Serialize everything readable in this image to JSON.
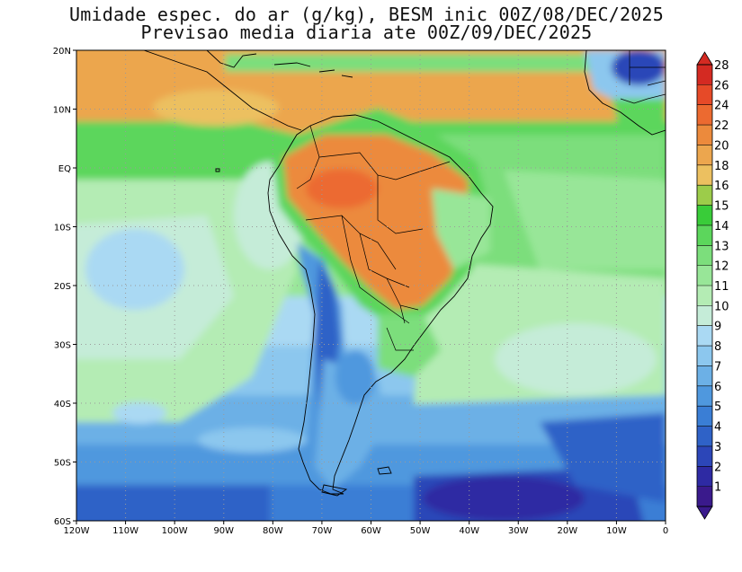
{
  "title": {
    "line1": "Umidade espec. do ar (g/kg), BESM inic 00Z/08/DEC/2025",
    "line2": "Previsao media diaria ate 00Z/09/DEC/2025"
  },
  "map": {
    "lon_labels": [
      "120W",
      "110W",
      "100W",
      "90W",
      "80W",
      "70W",
      "60W",
      "50W",
      "40W",
      "30W",
      "20W",
      "10W",
      "0"
    ],
    "lat_labels": [
      "20N",
      "10N",
      "EQ",
      "10S",
      "20S",
      "30S",
      "40S",
      "50S",
      "60S"
    ],
    "extent": {
      "lon": [
        -120,
        0
      ],
      "lat": [
        -60,
        20
      ]
    },
    "grid": "dotted"
  },
  "colorbar": {
    "labels": [
      "1",
      "2",
      "3",
      "4",
      "5",
      "6",
      "7",
      "8",
      "9",
      "10",
      "11",
      "12",
      "13",
      "14",
      "15",
      "16",
      "18",
      "20",
      "22",
      "24",
      "26",
      "28"
    ],
    "colors": [
      "#3a1a8c",
      "#2e2aa3",
      "#2c46b8",
      "#2f62c7",
      "#3a7ed5",
      "#4f98de",
      "#6cb0e6",
      "#8cc7ee",
      "#aad9f3",
      "#c5ecd8",
      "#b4ecb4",
      "#98e698",
      "#7cde7c",
      "#5cd65c",
      "#39cc39",
      "#9ccc4a",
      "#ecc060",
      "#eca64e",
      "#ec8a3c",
      "#ec6a30",
      "#e64a28",
      "#d42a22"
    ]
  }
}
